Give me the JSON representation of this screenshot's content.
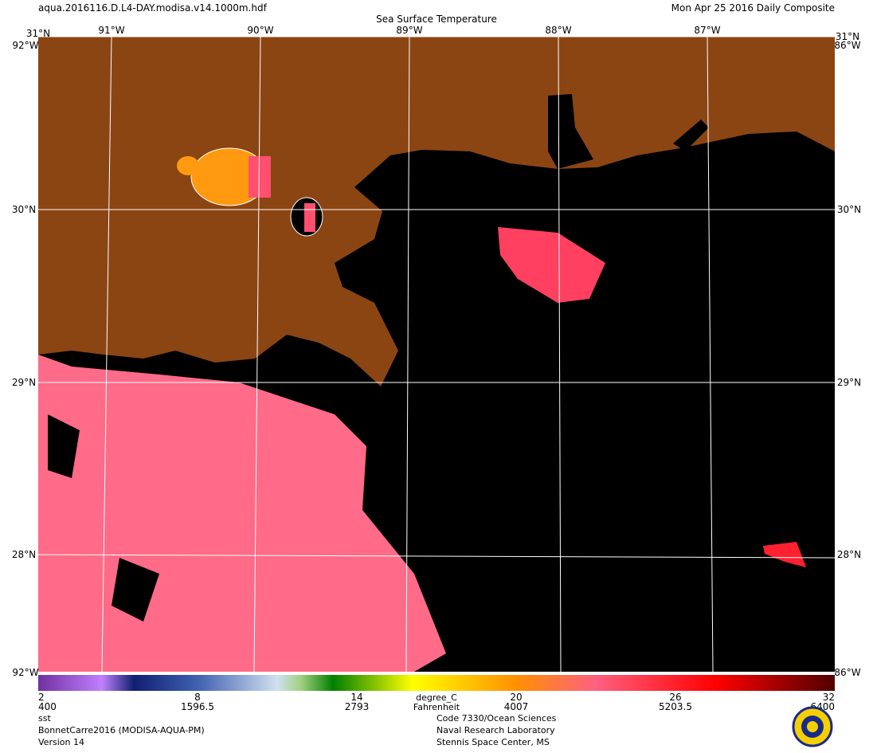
{
  "header": {
    "file": "aqua.2016116.D.L4-DAY.modisa.v14.1000m.hdf",
    "title": "Sea Surface Temperature",
    "date": "Mon Apr 25 2016 Daily Composite"
  },
  "map": {
    "latitudes": [
      "31°N",
      "30°N",
      "29°N",
      "28°N"
    ],
    "longitudes": [
      "91°W",
      "90°W",
      "89°W",
      "88°W",
      "87°W"
    ],
    "corner_west": "92°W",
    "corner_east": "86°W"
  },
  "colorbar": {
    "celsius": [
      2,
      8,
      14,
      20,
      26,
      32
    ],
    "fahrenheit_row": [
      400,
      1596.5,
      2793,
      4007,
      5203.5,
      6400
    ],
    "unit": "degree_C",
    "unit2": "Fahrenheit"
  },
  "footer": {
    "left": [
      "sst",
      "BonnetCarre2016 (MODISA-AQUA-PM)",
      "Version 14"
    ],
    "right": [
      "Code 7330/Ocean Sciences",
      "Naval Research Laboratory",
      "Stennis Space Center, MS"
    ]
  }
}
